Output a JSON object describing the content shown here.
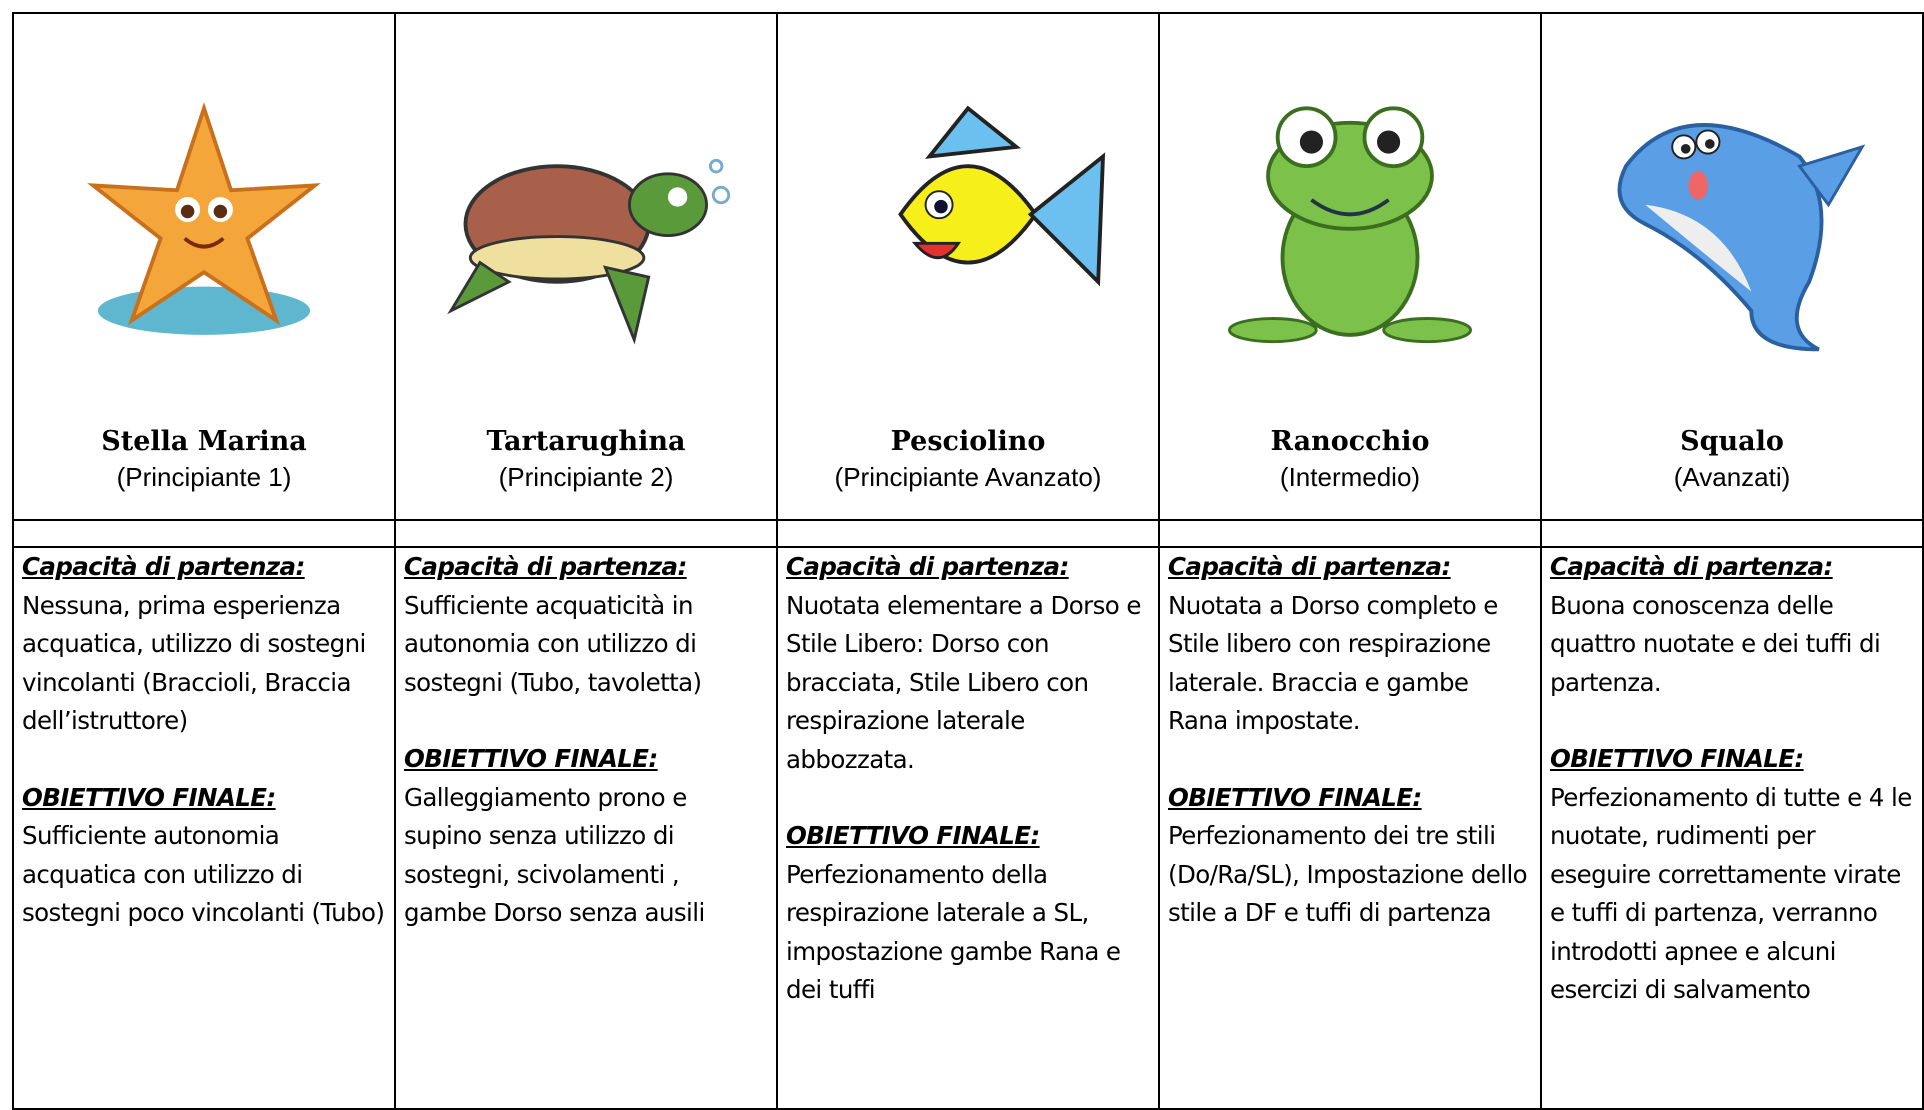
{
  "columns": [
    {
      "name": "Stella Marina",
      "level": "(Principiante 1)",
      "start_label": "Capacità di partenza:",
      "start_text": "Nessuna, prima esperienza acquatica, utilizzo di sostegni vincolanti (Braccioli, Braccia dell’istruttore)",
      "goal_label": "OBIETTIVO FINALE:",
      "goal_text": "Sufficiente autonomia acquatica con utilizzo di sostegni poco vincolanti (Tubo)"
    },
    {
      "name": "Tartarughina",
      "level": "(Principiante 2)",
      "start_label": "Capacità di partenza:",
      "start_text": "Sufficiente acquaticità in autonomia con utilizzo di sostegni (Tubo, tavoletta)",
      "goal_label": "OBIETTIVO FINALE:",
      "goal_text": "Galleggiamento prono e supino senza utilizzo di sostegni, scivolamenti , gambe Dorso senza ausili"
    },
    {
      "name": "Pesciolino",
      "level": "(Principiante Avanzato)",
      "start_label": "Capacità di partenza:",
      "start_text": "Nuotata elementare a Dorso e Stile Libero: Dorso con bracciata, Stile Libero con respirazione laterale abbozzata.",
      "goal_label": "OBIETTIVO FINALE:",
      "goal_text": "Perfezionamento della respirazione laterale a SL, impostazione gambe Rana e dei tuffi"
    },
    {
      "name": "Ranocchio",
      "level": "(Intermedio)",
      "start_label": "Capacità di partenza:",
      "start_text": "Nuotata a Dorso completo e Stile libero con respirazione laterale. Braccia e gambe Rana impostate.",
      "goal_label": "OBIETTIVO FINALE:",
      "goal_text": "Perfezionamento dei tre stili (Do/Ra/SL), Impostazione dello stile a DF e tuffi di partenza"
    },
    {
      "name": "Squalo",
      "level": "(Avanzati)",
      "start_label": "Capacità di partenza:",
      "start_text": "Buona conoscenza delle quattro nuotate e dei tuffi di partenza.",
      "goal_label": "OBIETTIVO FINALE:",
      "goal_text": "Perfezionamento di tutte e 4 le nuotate, rudimenti per eseguire correttamente virate e tuffi di partenza, verranno introdotti apnee e alcuni esercizi di salvamento"
    }
  ]
}
